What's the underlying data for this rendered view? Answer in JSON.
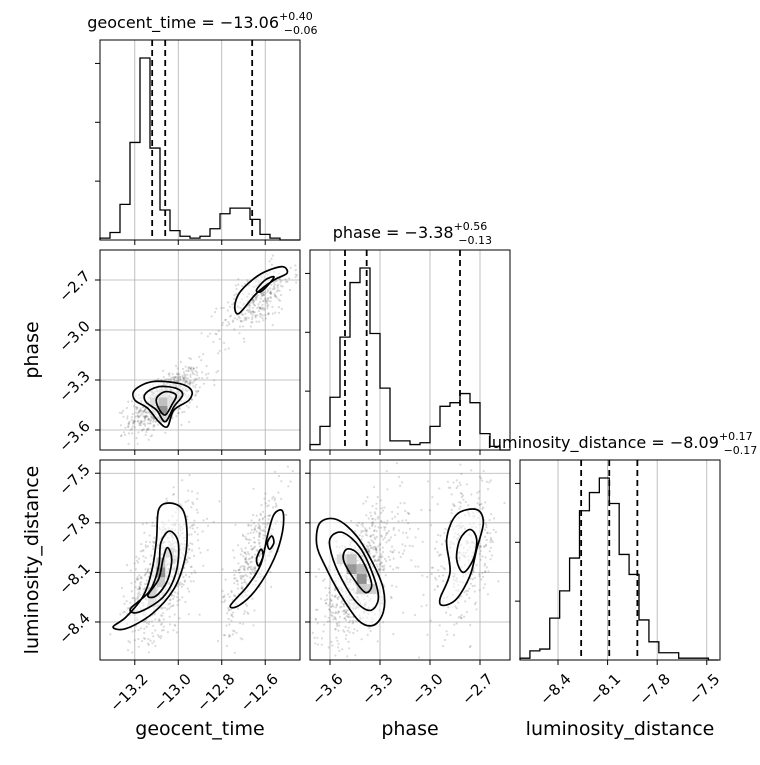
{
  "chart_data": {
    "type": "corner",
    "parameters": [
      {
        "name": "geocent_time",
        "title": {
          "prefix": "geocent_time = ",
          "median": "−13.06",
          "upper": "+0.40",
          "lower": "−0.06"
        },
        "range": [
          -13.36,
          -12.44
        ],
        "ticks": [
          -13.2,
          -13.0,
          -12.8,
          -12.6
        ],
        "tick_labels": [
          "−13.2",
          "−13.0",
          "−12.8",
          "−12.6"
        ],
        "quantiles": [
          -13.12,
          -13.06,
          -12.66
        ],
        "hist": {
          "edges_start": -13.36,
          "bin_width": 0.046,
          "counts": [
            0.01,
            0.04,
            0.19,
            0.52,
            0.97,
            0.49,
            0.16,
            0.05,
            0.02,
            0.01,
            0.02,
            0.06,
            0.14,
            0.17,
            0.17,
            0.11,
            0.03,
            0.01,
            0.0,
            0.0
          ]
        }
      },
      {
        "name": "phase",
        "title": {
          "prefix": "phase = ",
          "median": "−3.38",
          "upper": "+0.56",
          "lower": "−0.13"
        },
        "range": [
          -3.72,
          -2.52
        ],
        "ticks": [
          -3.6,
          -3.3,
          -3.0,
          -2.7
        ],
        "tick_labels": [
          "−3.6",
          "−3.3",
          "−3.0",
          "−2.7"
        ],
        "quantiles": [
          -3.51,
          -3.38,
          -2.82
        ],
        "hist": {
          "edges_start": -3.72,
          "bin_width": 0.06,
          "counts": [
            0.03,
            0.13,
            0.29,
            0.62,
            0.92,
            1.0,
            0.64,
            0.34,
            0.05,
            0.05,
            0.03,
            0.04,
            0.13,
            0.24,
            0.26,
            0.31,
            0.26,
            0.09,
            0.02,
            0.0
          ]
        }
      },
      {
        "name": "luminosity_distance",
        "title": {
          "prefix": "luminosity_distance = ",
          "median": "−8.09",
          "upper": "+0.17",
          "lower": "−0.17"
        },
        "range": [
          -8.63,
          -7.42
        ],
        "ticks": [
          -8.4,
          -8.1,
          -7.8,
          -7.5
        ],
        "tick_labels": [
          "−8.4",
          "−8.1",
          "−7.8",
          "−7.5"
        ],
        "quantiles": [
          -8.26,
          -8.09,
          -7.92
        ],
        "hist": {
          "edges_start": -8.63,
          "bin_width": 0.06,
          "counts": [
            0.01,
            0.05,
            0.06,
            0.23,
            0.38,
            0.56,
            0.82,
            0.92,
            1.0,
            0.86,
            0.58,
            0.47,
            0.22,
            0.1,
            0.04,
            0.04,
            0.01,
            0.01,
            0.01,
            0.0
          ]
        }
      }
    ],
    "pairs": [
      {
        "x": "geocent_time",
        "y": "phase",
        "clusters": [
          {
            "center": [
              -13.06,
              -3.42
            ],
            "sd": [
              0.06,
              0.07
            ],
            "n": 700
          },
          {
            "center": [
              -12.64,
              -2.82
            ],
            "sd": [
              0.06,
              0.08
            ],
            "n": 320
          }
        ],
        "contours": [
          [
            [
              -13.2,
              -3.36
            ],
            [
              -13.12,
              -3.31
            ],
            [
              -13.0,
              -3.32
            ],
            [
              -12.94,
              -3.36
            ],
            [
              -12.95,
              -3.42
            ],
            [
              -13.02,
              -3.48
            ],
            [
              -13.05,
              -3.58
            ],
            [
              -13.09,
              -3.55
            ],
            [
              -13.14,
              -3.47
            ],
            [
              -13.2,
              -3.42
            ]
          ],
          [
            [
              -13.15,
              -3.38
            ],
            [
              -13.09,
              -3.34
            ],
            [
              -13.01,
              -3.35
            ],
            [
              -12.98,
              -3.39
            ],
            [
              -13.02,
              -3.46
            ],
            [
              -13.06,
              -3.55
            ],
            [
              -13.1,
              -3.48
            ],
            [
              -13.15,
              -3.43
            ]
          ],
          [
            [
              -13.1,
              -3.41
            ],
            [
              -13.06,
              -3.37
            ],
            [
              -13.01,
              -3.39
            ],
            [
              -13.03,
              -3.45
            ],
            [
              -13.06,
              -3.51
            ],
            [
              -13.09,
              -3.47
            ]
          ],
          [
            [
              -12.72,
              -2.9
            ],
            [
              -12.64,
              -2.78
            ],
            [
              -12.56,
              -2.7
            ],
            [
              -12.5,
              -2.66
            ],
            [
              -12.52,
              -2.62
            ],
            [
              -12.6,
              -2.65
            ],
            [
              -12.66,
              -2.7
            ],
            [
              -12.72,
              -2.78
            ],
            [
              -12.74,
              -2.86
            ]
          ],
          [
            [
              -12.64,
              -2.76
            ],
            [
              -12.6,
              -2.7
            ],
            [
              -12.56,
              -2.68
            ],
            [
              -12.58,
              -2.72
            ],
            [
              -12.62,
              -2.77
            ]
          ]
        ],
        "density_cells": [
          {
            "x": -13.07,
            "y": -3.48,
            "w": 0.04,
            "h": 0.05,
            "level": 0.95
          },
          {
            "x": -13.07,
            "y": -3.43,
            "w": 0.04,
            "h": 0.05,
            "level": 0.55
          },
          {
            "x": -13.03,
            "y": -3.43,
            "w": 0.04,
            "h": 0.05,
            "level": 0.25
          },
          {
            "x": -13.11,
            "y": -3.43,
            "w": 0.04,
            "h": 0.05,
            "level": 0.3
          },
          {
            "x": -13.07,
            "y": -3.38,
            "w": 0.04,
            "h": 0.05,
            "level": 0.2
          },
          {
            "x": -13.07,
            "y": -3.53,
            "w": 0.04,
            "h": 0.05,
            "level": 0.35
          }
        ]
      },
      {
        "x": "geocent_time",
        "y": "luminosity_distance",
        "clusters": [
          {
            "center": [
              -13.07,
              -8.1
            ],
            "sd": [
              0.06,
              0.15
            ],
            "rho": 0.55,
            "n": 750
          },
          {
            "center": [
              -12.66,
              -8.02
            ],
            "sd": [
              0.05,
              0.16
            ],
            "rho": 0.75,
            "n": 330
          }
        ],
        "contours": [
          [
            [
              -13.3,
              -8.43
            ],
            [
              -13.24,
              -8.37
            ],
            [
              -13.16,
              -8.24
            ],
            [
              -13.12,
              -8.08
            ],
            [
              -13.1,
              -7.9
            ],
            [
              -13.09,
              -7.72
            ],
            [
              -13.04,
              -7.68
            ],
            [
              -12.98,
              -7.72
            ],
            [
              -12.96,
              -7.85
            ],
            [
              -12.97,
              -8.02
            ],
            [
              -13.02,
              -8.2
            ],
            [
              -13.12,
              -8.35
            ],
            [
              -13.24,
              -8.44
            ]
          ],
          [
            [
              -13.22,
              -8.32
            ],
            [
              -13.13,
              -8.21
            ],
            [
              -13.09,
              -8.06
            ],
            [
              -13.08,
              -7.92
            ],
            [
              -13.04,
              -7.85
            ],
            [
              -13.0,
              -7.92
            ],
            [
              -13.01,
              -8.1
            ],
            [
              -13.07,
              -8.25
            ],
            [
              -13.18,
              -8.34
            ]
          ],
          [
            [
              -13.14,
              -8.24
            ],
            [
              -13.09,
              -8.14
            ],
            [
              -13.07,
              -8.02
            ],
            [
              -13.05,
              -7.95
            ],
            [
              -13.03,
              -8.02
            ],
            [
              -13.05,
              -8.15
            ],
            [
              -13.1,
              -8.24
            ]
          ],
          [
            [
              -12.76,
              -8.3
            ],
            [
              -12.68,
              -8.18
            ],
            [
              -12.62,
              -8.05
            ],
            [
              -12.59,
              -7.88
            ],
            [
              -12.56,
              -7.75
            ],
            [
              -12.52,
              -7.73
            ],
            [
              -12.52,
              -7.85
            ],
            [
              -12.56,
              -8.02
            ],
            [
              -12.64,
              -8.2
            ],
            [
              -12.72,
              -8.3
            ]
          ],
          [
            [
              -12.64,
              -8.02
            ],
            [
              -12.62,
              -7.96
            ],
            [
              -12.61,
              -8.0
            ],
            [
              -12.63,
              -8.06
            ]
          ],
          [
            [
              -12.59,
              -7.92
            ],
            [
              -12.57,
              -7.88
            ],
            [
              -12.56,
              -7.92
            ],
            [
              -12.58,
              -7.96
            ]
          ]
        ],
        "density_cells": [
          {
            "x": -13.08,
            "y": -8.1,
            "w": 0.04,
            "h": 0.06,
            "level": 0.95
          },
          {
            "x": -13.08,
            "y": -8.04,
            "w": 0.04,
            "h": 0.06,
            "level": 0.5
          },
          {
            "x": -13.08,
            "y": -8.16,
            "w": 0.04,
            "h": 0.06,
            "level": 0.45
          },
          {
            "x": -13.12,
            "y": -8.22,
            "w": 0.04,
            "h": 0.06,
            "level": 0.4
          },
          {
            "x": -13.04,
            "y": -7.98,
            "w": 0.04,
            "h": 0.06,
            "level": 0.3
          },
          {
            "x": -13.12,
            "y": -8.28,
            "w": 0.04,
            "h": 0.06,
            "level": 0.25
          }
        ]
      },
      {
        "x": "phase",
        "y": "luminosity_distance",
        "clusters": [
          {
            "center": [
              -3.42,
              -8.12
            ],
            "sd": [
              0.09,
              0.15
            ],
            "rho": 0.6,
            "n": 800
          },
          {
            "center": [
              -2.8,
              -7.98
            ],
            "sd": [
              0.08,
              0.17
            ],
            "rho": 0.2,
            "n": 350
          }
        ],
        "contours": [
          [
            [
              -3.68,
              -7.93
            ],
            [
              -3.63,
              -8.06
            ],
            [
              -3.54,
              -8.23
            ],
            [
              -3.43,
              -8.39
            ],
            [
              -3.34,
              -8.42
            ],
            [
              -3.28,
              -8.34
            ],
            [
              -3.28,
              -8.2
            ],
            [
              -3.34,
              -8.05
            ],
            [
              -3.44,
              -7.88
            ],
            [
              -3.56,
              -7.78
            ],
            [
              -3.66,
              -7.8
            ]
          ],
          [
            [
              -3.6,
              -7.95
            ],
            [
              -3.55,
              -8.1
            ],
            [
              -3.45,
              -8.27
            ],
            [
              -3.36,
              -8.33
            ],
            [
              -3.31,
              -8.26
            ],
            [
              -3.34,
              -8.12
            ],
            [
              -3.42,
              -7.95
            ],
            [
              -3.52,
              -7.86
            ],
            [
              -3.59,
              -7.88
            ]
          ],
          [
            [
              -3.52,
              -8.02
            ],
            [
              -3.47,
              -8.12
            ],
            [
              -3.39,
              -8.22
            ],
            [
              -3.35,
              -8.18
            ],
            [
              -3.38,
              -8.08
            ],
            [
              -3.44,
              -7.98
            ],
            [
              -3.5,
              -7.96
            ]
          ],
          [
            [
              -2.94,
              -8.26
            ],
            [
              -2.88,
              -8.1
            ],
            [
              -2.9,
              -7.9
            ],
            [
              -2.84,
              -7.75
            ],
            [
              -2.72,
              -7.72
            ],
            [
              -2.68,
              -7.8
            ],
            [
              -2.72,
              -7.96
            ],
            [
              -2.76,
              -8.12
            ],
            [
              -2.84,
              -8.26
            ],
            [
              -2.92,
              -8.3
            ]
          ],
          [
            [
              -2.84,
              -8.02
            ],
            [
              -2.82,
              -7.9
            ],
            [
              -2.76,
              -7.84
            ],
            [
              -2.72,
              -7.9
            ],
            [
              -2.74,
              -8.02
            ],
            [
              -2.8,
              -8.1
            ]
          ]
        ],
        "density_cells": [
          {
            "x": -3.47,
            "y": -8.08,
            "w": 0.06,
            "h": 0.06,
            "level": 0.9
          },
          {
            "x": -3.41,
            "y": -8.14,
            "w": 0.06,
            "h": 0.06,
            "level": 0.95
          },
          {
            "x": -3.47,
            "y": -8.02,
            "w": 0.06,
            "h": 0.06,
            "level": 0.5
          },
          {
            "x": -3.41,
            "y": -8.08,
            "w": 0.06,
            "h": 0.06,
            "level": 0.6
          },
          {
            "x": -3.35,
            "y": -8.2,
            "w": 0.06,
            "h": 0.06,
            "level": 0.4
          },
          {
            "x": -3.53,
            "y": -8.02,
            "w": 0.06,
            "h": 0.06,
            "level": 0.3
          },
          {
            "x": -3.41,
            "y": -8.2,
            "w": 0.06,
            "h": 0.06,
            "level": 0.45
          }
        ]
      }
    ],
    "grid": true,
    "colors": {
      "line": "#000000",
      "scatter": "#555555",
      "grid": "#b0b0b0"
    }
  }
}
